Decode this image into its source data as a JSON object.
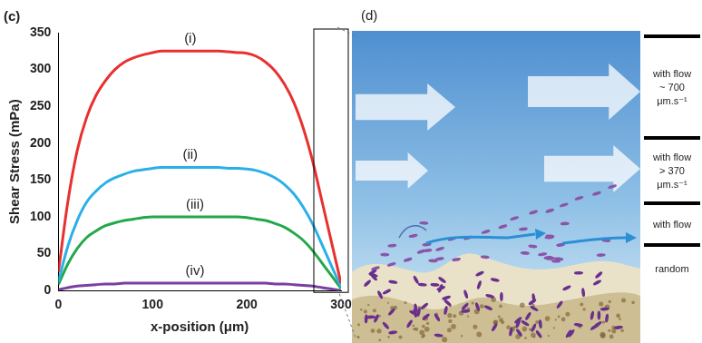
{
  "chart_data": {
    "type": "line",
    "title": "(c)",
    "x_label": "x-position (μm)",
    "y_label": "Shear Stress (mPa)",
    "x": [
      0,
      10,
      20,
      30,
      40,
      50,
      60,
      70,
      80,
      90,
      100,
      110,
      120,
      130,
      140,
      150,
      160,
      170,
      180,
      190,
      200,
      210,
      220,
      230,
      240,
      250,
      260,
      270,
      280,
      290,
      300
    ],
    "series": [
      {
        "name": "(i)",
        "color": "#e8312f",
        "values": [
          25,
          120,
          190,
          235,
          265,
          285,
          300,
          310,
          316,
          320,
          323,
          325,
          325,
          325,
          325,
          325,
          325,
          325,
          324,
          323,
          322,
          318,
          310,
          298,
          280,
          255,
          220,
          175,
          120,
          65,
          10
        ]
      },
      {
        "name": "(ii)",
        "color": "#2ab0e8",
        "values": [
          12,
          60,
          95,
          120,
          135,
          146,
          153,
          158,
          162,
          164,
          166,
          167,
          167,
          167,
          167,
          167,
          167,
          167,
          166,
          166,
          165,
          163,
          159,
          153,
          144,
          131,
          113,
          90,
          62,
          33,
          5
        ]
      },
      {
        "name": "(iii)",
        "color": "#22a84a",
        "values": [
          8,
          36,
          57,
          72,
          81,
          88,
          92,
          95,
          97,
          99,
          100,
          100,
          100,
          100,
          100,
          100,
          100,
          100,
          100,
          100,
          99,
          97,
          95,
          91,
          86,
          78,
          68,
          54,
          37,
          20,
          3
        ]
      },
      {
        "name": "(iv)",
        "color": "#7b3fa0",
        "values": [
          1,
          4,
          6,
          7,
          8,
          9,
          9,
          10,
          10,
          10,
          10,
          10,
          10,
          10,
          10,
          10,
          10,
          10,
          10,
          10,
          10,
          10,
          10,
          9,
          9,
          8,
          7,
          6,
          4,
          2,
          0
        ]
      }
    ],
    "xlim": [
      0,
      300
    ],
    "xticks": [
      0,
      100,
      200,
      300
    ],
    "ylim": [
      0,
      350
    ],
    "yticks": [
      0,
      50,
      100,
      150,
      200,
      250,
      300,
      350
    ],
    "grid": false
  },
  "diagram": {
    "panel_label": "(d)",
    "zones": [
      {
        "lines": [
          "with flow",
          "~ 700",
          "μm.s⁻¹"
        ]
      },
      {
        "lines": [
          "with flow",
          "> 370",
          "μm.s⁻¹"
        ]
      },
      {
        "lines": [
          "with flow"
        ]
      },
      {
        "lines": [
          "random"
        ]
      }
    ]
  }
}
